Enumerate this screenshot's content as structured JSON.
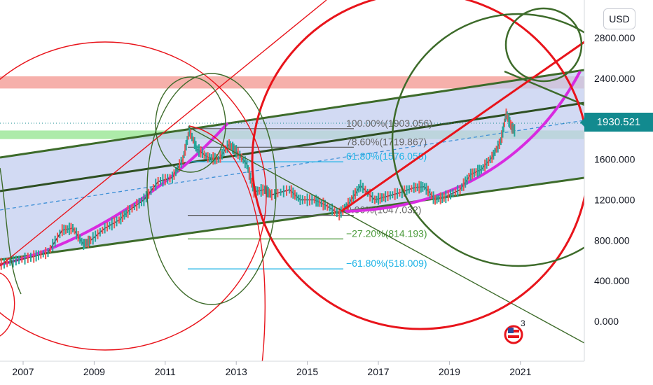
{
  "chart_data": {
    "type": "line",
    "title": "",
    "currency": "USD",
    "current_price": "1930.521",
    "x_ticks": [
      "2007",
      "2009",
      "2011",
      "2013",
      "2015",
      "2017",
      "2019",
      "2021"
    ],
    "y_ticks": [
      "2800.000",
      "2400.000",
      "1600.000",
      "1200.000",
      "800.000",
      "400.000",
      "0.000"
    ],
    "ylim": [
      -250,
      3050
    ],
    "series": [
      {
        "values": [
          [
            2006.3,
            560
          ],
          [
            2006.8,
            600
          ],
          [
            2007.3,
            640
          ],
          [
            2007.7,
            680
          ],
          [
            2008.1,
            900
          ],
          [
            2008.4,
            920
          ],
          [
            2008.7,
            760
          ],
          [
            2008.9,
            800
          ],
          [
            2009.3,
            920
          ],
          [
            2009.7,
            1000
          ],
          [
            2010.0,
            1100
          ],
          [
            2010.4,
            1200
          ],
          [
            2010.8,
            1380
          ],
          [
            2011.2,
            1420
          ],
          [
            2011.5,
            1600
          ],
          [
            2011.68,
            1880
          ],
          [
            2011.9,
            1700
          ],
          [
            2012.2,
            1620
          ],
          [
            2012.5,
            1600
          ],
          [
            2012.8,
            1750
          ],
          [
            2013.0,
            1680
          ],
          [
            2013.3,
            1550
          ],
          [
            2013.5,
            1280
          ],
          [
            2013.8,
            1300
          ],
          [
            2014.0,
            1250
          ],
          [
            2014.5,
            1300
          ],
          [
            2014.8,
            1200
          ],
          [
            2015.2,
            1200
          ],
          [
            2015.5,
            1150
          ],
          [
            2015.9,
            1060
          ],
          [
            2016.2,
            1180
          ],
          [
            2016.5,
            1340
          ],
          [
            2016.9,
            1200
          ],
          [
            2017.2,
            1230
          ],
          [
            2017.6,
            1270
          ],
          [
            2018.0,
            1320
          ],
          [
            2018.3,
            1330
          ],
          [
            2018.6,
            1200
          ],
          [
            2018.9,
            1230
          ],
          [
            2019.3,
            1300
          ],
          [
            2019.6,
            1450
          ],
          [
            2019.9,
            1500
          ],
          [
            2020.2,
            1620
          ],
          [
            2020.45,
            1780
          ],
          [
            2020.6,
            2050
          ],
          [
            2020.75,
            1920
          ],
          [
            2020.85,
            1880
          ]
        ]
      }
    ],
    "fib_levels": [
      {
        "label": "100.00%(1903.056)",
        "value": 1903.056
      },
      {
        "label": "78.60%(1719.867)",
        "value": 1719.867
      },
      {
        "label": "61.80%(1576.055)",
        "value": 1576.055
      },
      {
        "label": "0.00%(1047.032)",
        "value": 1047.032
      },
      {
        "label": "−27.20%(814.193)",
        "value": 814.193
      },
      {
        "label": "−61.80%(518.009)",
        "value": 518.009
      }
    ],
    "horizontal_zones": [
      {
        "from": 2300,
        "to": 2420,
        "color": "#f4a29c"
      },
      {
        "from": 1800,
        "to": 1885,
        "color": "#9fe89a"
      }
    ],
    "grid": false,
    "badge_count": "3"
  },
  "colors": {
    "candles_up": "#26a69a",
    "candles_down": "#ef5350",
    "channel_fill": "#c3cdef",
    "dark_green": "#3d6b2a",
    "red": "#e8141b",
    "magenta": "#d82be0",
    "accent": "#128a8f"
  }
}
